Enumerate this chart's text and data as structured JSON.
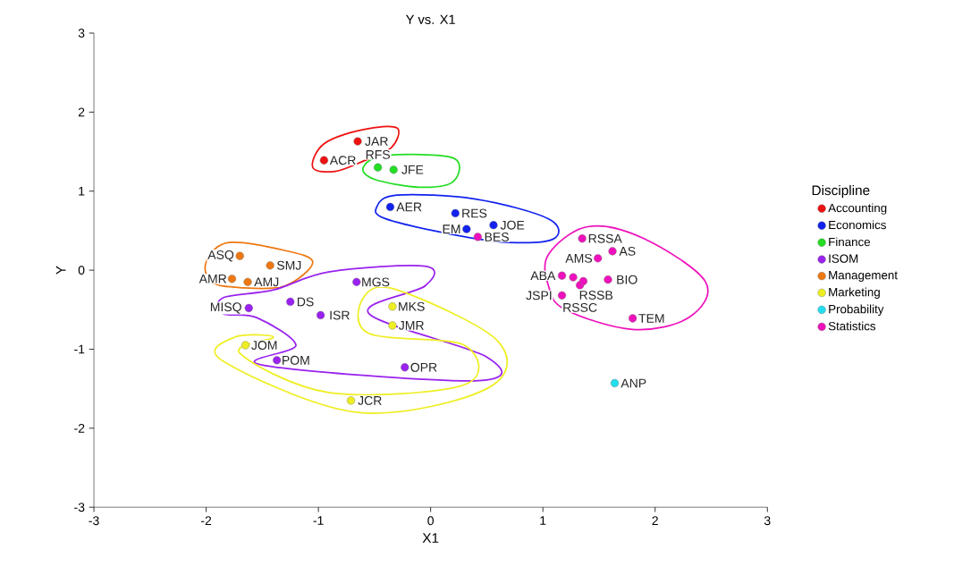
{
  "chart_data": {
    "type": "scatter",
    "title": "Y vs. X1",
    "xlabel": "X1",
    "ylabel": "Y",
    "legend_title": "Discipline",
    "legend": "right",
    "grid": false,
    "xlim": [
      -3,
      3
    ],
    "ylim": [
      -3,
      3
    ],
    "xticks": [
      -3,
      -2,
      -1,
      0,
      1,
      2,
      3
    ],
    "yticks": [
      -3,
      -2,
      -1,
      0,
      1,
      2,
      3
    ],
    "series": [
      {
        "name": "Accounting",
        "color": "#ee1111",
        "x": [
          -0.65,
          -0.95
        ],
        "values": [
          1.63,
          1.39
        ]
      },
      {
        "name": "Economics",
        "color": "#1122ee",
        "x": [
          -0.36,
          0.22,
          0.56,
          0.32
        ],
        "values": [
          0.8,
          0.72,
          0.57,
          0.52
        ]
      },
      {
        "name": "Finance",
        "color": "#22dd22",
        "x": [
          -0.47,
          -0.33
        ],
        "values": [
          1.3,
          1.27
        ]
      },
      {
        "name": "ISOM",
        "color": "#9922ee",
        "x": [
          -0.66,
          -1.25,
          -1.62,
          -0.98,
          -1.37,
          -0.23
        ],
        "values": [
          -0.15,
          -0.4,
          -0.48,
          -0.57,
          -1.14,
          -1.23
        ]
      },
      {
        "name": "Management",
        "color": "#ee7711",
        "x": [
          -1.7,
          -1.43,
          -1.77,
          -1.63
        ],
        "values": [
          0.18,
          0.06,
          -0.11,
          -0.15
        ]
      },
      {
        "name": "Marketing",
        "color": "#eeee22",
        "x": [
          -0.34,
          -0.34,
          -1.65,
          -0.71
        ],
        "values": [
          -0.46,
          -0.7,
          -0.95,
          -1.65
        ]
      },
      {
        "name": "Probability",
        "color": "#22ddee",
        "x": [
          1.64
        ],
        "values": [
          -1.43
        ]
      },
      {
        "name": "Statistics",
        "color": "#ee11bb",
        "x": [
          0.42,
          1.35,
          1.62,
          1.49,
          1.17,
          1.27,
          1.58,
          1.33,
          1.36,
          1.17,
          1.8
        ],
        "values": [
          0.42,
          0.4,
          0.24,
          0.15,
          -0.07,
          -0.09,
          -0.12,
          -0.19,
          -0.14,
          -0.32,
          -0.61
        ]
      }
    ],
    "annotations": [
      {
        "text": "JAR",
        "x": -0.65,
        "y": 1.63
      },
      {
        "text": "ACR",
        "x": -0.95,
        "y": 1.39
      },
      {
        "text": "RFS",
        "x": -0.47,
        "y": 1.3
      },
      {
        "text": "JFE",
        "x": -0.33,
        "y": 1.27
      },
      {
        "text": "AER",
        "x": -0.36,
        "y": 0.8
      },
      {
        "text": "RES",
        "x": 0.22,
        "y": 0.72
      },
      {
        "text": "JOE",
        "x": 0.56,
        "y": 0.57
      },
      {
        "text": "EM",
        "x": 0.32,
        "y": 0.52
      },
      {
        "text": "MGS",
        "x": -0.66,
        "y": -0.15
      },
      {
        "text": "DS",
        "x": -1.25,
        "y": -0.4
      },
      {
        "text": "MISQ",
        "x": -1.62,
        "y": -0.48
      },
      {
        "text": "ISR",
        "x": -0.98,
        "y": -0.57
      },
      {
        "text": "POM",
        "x": -1.37,
        "y": -1.14
      },
      {
        "text": "OPR",
        "x": -0.23,
        "y": -1.23
      },
      {
        "text": "ASQ",
        "x": -1.7,
        "y": 0.18
      },
      {
        "text": "SMJ",
        "x": -1.43,
        "y": 0.06
      },
      {
        "text": "AMR",
        "x": -1.77,
        "y": -0.11
      },
      {
        "text": "AMJ",
        "x": -1.63,
        "y": -0.15
      },
      {
        "text": "MKS",
        "x": -0.34,
        "y": -0.46
      },
      {
        "text": "JMR",
        "x": -0.34,
        "y": -0.7
      },
      {
        "text": "JOM",
        "x": -1.65,
        "y": -0.95
      },
      {
        "text": "JCR",
        "x": -0.71,
        "y": -1.65
      },
      {
        "text": "ANP",
        "x": 1.64,
        "y": -1.43
      },
      {
        "text": "BES",
        "x": 0.42,
        "y": 0.42
      },
      {
        "text": "RSSA",
        "x": 1.35,
        "y": 0.4
      },
      {
        "text": "AS",
        "x": 1.62,
        "y": 0.24
      },
      {
        "text": "AMS",
        "x": 1.49,
        "y": 0.15
      },
      {
        "text": "ABA",
        "x": 1.17,
        "y": -0.07
      },
      {
        "text": "RSSB",
        "x": 1.27,
        "y": -0.09
      },
      {
        "text": "BIO",
        "x": 1.58,
        "y": -0.12
      },
      {
        "text": "RSSC",
        "x": 1.33,
        "y": -0.19
      },
      {
        "text": "JSPI",
        "x": 1.17,
        "y": -0.32
      },
      {
        "text": "TEM",
        "x": 1.8,
        "y": -0.61
      }
    ]
  }
}
